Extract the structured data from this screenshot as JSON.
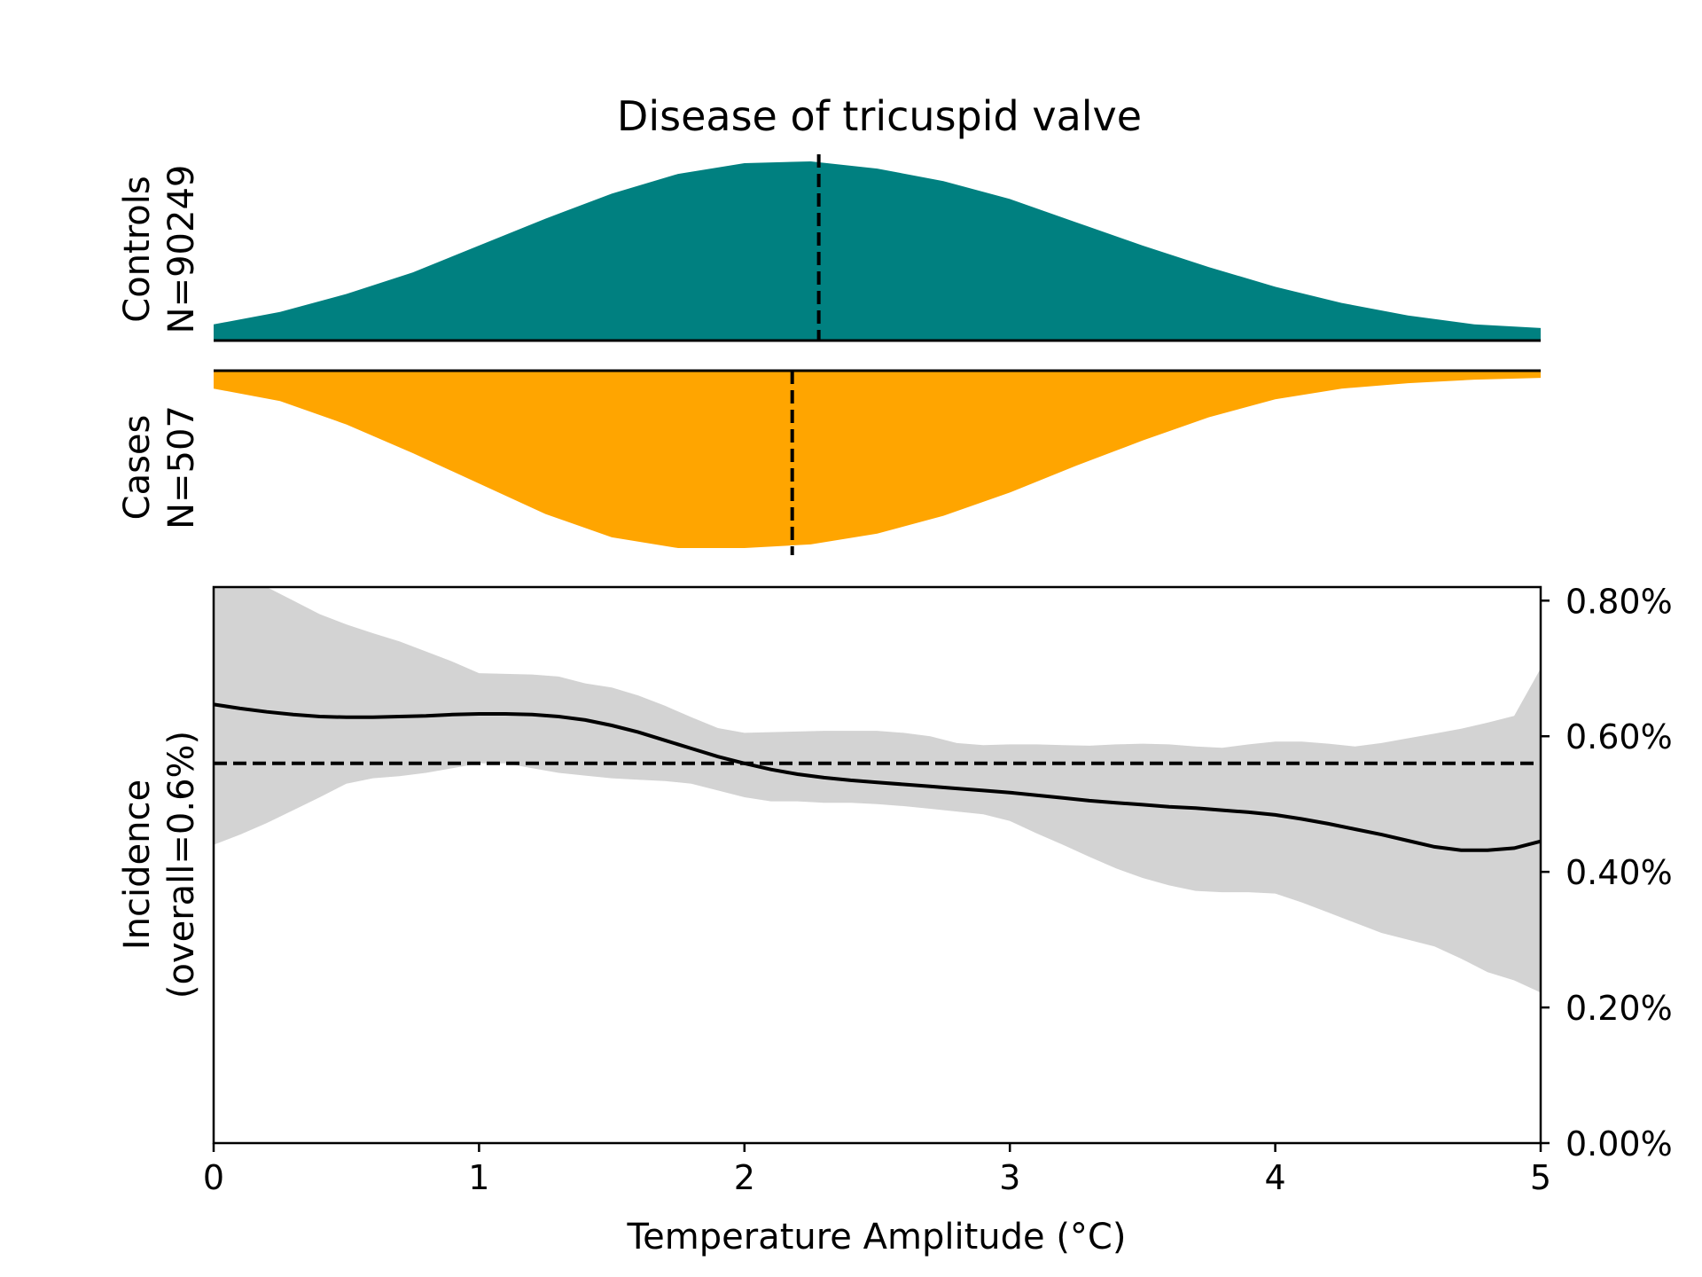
{
  "chart_data": {
    "type": "area",
    "title": "Disease of tricuspid valve",
    "xlabel": "Temperature Amplitude (°C)",
    "xlim": [
      0,
      5
    ],
    "x_ticks": [
      0,
      1,
      2,
      3,
      4,
      5
    ],
    "x_tick_labels": [
      "0",
      "1",
      "2",
      "3",
      "4",
      "5"
    ],
    "grid": false,
    "legend": "none",
    "distributions": {
      "controls": {
        "label_line1": "Controls",
        "label_line2": "N=90249",
        "color": "#008080",
        "median": 2.28,
        "x": [
          0.0,
          0.25,
          0.5,
          0.75,
          1.0,
          1.25,
          1.5,
          1.75,
          2.0,
          2.25,
          2.5,
          2.75,
          3.0,
          3.25,
          3.5,
          3.75,
          4.0,
          4.25,
          4.5,
          4.75,
          5.0
        ],
        "density": [
          0.09,
          0.16,
          0.26,
          0.38,
          0.53,
          0.68,
          0.82,
          0.93,
          0.99,
          1.0,
          0.96,
          0.89,
          0.79,
          0.66,
          0.53,
          0.41,
          0.3,
          0.21,
          0.14,
          0.09,
          0.07
        ]
      },
      "cases": {
        "label_line1": "Cases",
        "label_line2": "N=507",
        "color": "#FFA500",
        "median": 2.18,
        "x": [
          0.0,
          0.25,
          0.5,
          0.75,
          1.0,
          1.25,
          1.5,
          1.75,
          2.0,
          2.25,
          2.5,
          2.75,
          3.0,
          3.25,
          3.5,
          3.75,
          4.0,
          4.25,
          4.5,
          4.75,
          5.0
        ],
        "density": [
          0.1,
          0.17,
          0.3,
          0.46,
          0.63,
          0.8,
          0.93,
          0.99,
          0.99,
          0.97,
          0.91,
          0.81,
          0.68,
          0.53,
          0.39,
          0.26,
          0.16,
          0.1,
          0.07,
          0.05,
          0.04
        ]
      }
    },
    "incidence": {
      "ylabel_line1": "Incidence",
      "ylabel_line2": "(overall=0.6%)",
      "ylim": [
        0,
        0.82
      ],
      "y_ticks": [
        0,
        0.2,
        0.4,
        0.6,
        0.8
      ],
      "y_tick_labels": [
        "0.00%",
        "0.20%",
        "0.40%",
        "0.60%",
        "0.80%"
      ],
      "y_axis_side": "right",
      "overall_rate": 0.56,
      "line_color": "#000000",
      "band_color": "#D3D3D3",
      "x": [
        0.0,
        0.1,
        0.2,
        0.3,
        0.4,
        0.5,
        0.6,
        0.7,
        0.8,
        0.9,
        1.0,
        1.1,
        1.2,
        1.3,
        1.4,
        1.5,
        1.6,
        1.7,
        1.8,
        1.9,
        2.0,
        2.1,
        2.2,
        2.3,
        2.4,
        2.5,
        2.6,
        2.7,
        2.8,
        2.9,
        3.0,
        3.1,
        3.2,
        3.3,
        3.4,
        3.5,
        3.6,
        3.7,
        3.8,
        3.9,
        4.0,
        4.1,
        4.2,
        4.3,
        4.4,
        4.5,
        4.6,
        4.7,
        4.8,
        4.9,
        5.0
      ],
      "rate": [
        0.647,
        0.641,
        0.636,
        0.632,
        0.629,
        0.628,
        0.628,
        0.629,
        0.63,
        0.632,
        0.633,
        0.633,
        0.632,
        0.629,
        0.624,
        0.616,
        0.606,
        0.594,
        0.582,
        0.57,
        0.56,
        0.551,
        0.544,
        0.539,
        0.535,
        0.532,
        0.529,
        0.526,
        0.523,
        0.52,
        0.517,
        0.513,
        0.509,
        0.505,
        0.502,
        0.499,
        0.496,
        0.494,
        0.491,
        0.488,
        0.484,
        0.478,
        0.471,
        0.463,
        0.455,
        0.446,
        0.437,
        0.432,
        0.432,
        0.435,
        0.445
      ],
      "upper": [
        0.82,
        0.82,
        0.82,
        0.8,
        0.78,
        0.765,
        0.752,
        0.74,
        0.725,
        0.71,
        0.693,
        0.692,
        0.691,
        0.688,
        0.678,
        0.672,
        0.66,
        0.645,
        0.628,
        0.612,
        0.605,
        0.606,
        0.607,
        0.608,
        0.608,
        0.608,
        0.605,
        0.6,
        0.59,
        0.587,
        0.588,
        0.588,
        0.587,
        0.586,
        0.588,
        0.589,
        0.588,
        0.585,
        0.583,
        0.588,
        0.592,
        0.592,
        0.589,
        0.585,
        0.59,
        0.597,
        0.604,
        0.611,
        0.62,
        0.63,
        0.7
      ],
      "lower": [
        0.44,
        0.455,
        0.472,
        0.491,
        0.51,
        0.53,
        0.538,
        0.541,
        0.546,
        0.553,
        0.56,
        0.56,
        0.553,
        0.546,
        0.542,
        0.538,
        0.536,
        0.534,
        0.53,
        0.52,
        0.51,
        0.504,
        0.504,
        0.502,
        0.502,
        0.5,
        0.497,
        0.493,
        0.489,
        0.485,
        0.475,
        0.457,
        0.44,
        0.422,
        0.405,
        0.391,
        0.38,
        0.372,
        0.37,
        0.37,
        0.368,
        0.355,
        0.34,
        0.325,
        0.31,
        0.3,
        0.29,
        0.272,
        0.252,
        0.24,
        0.222
      ]
    }
  }
}
